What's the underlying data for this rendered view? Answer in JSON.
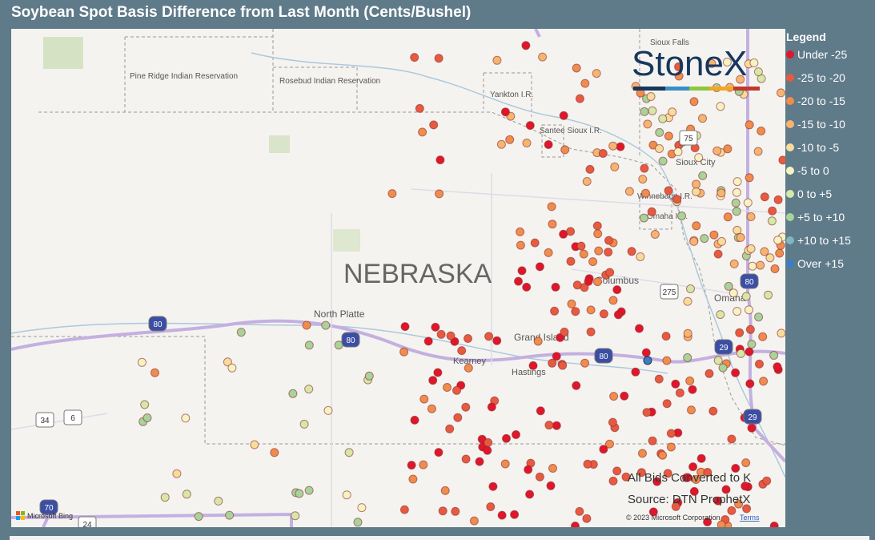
{
  "header": {
    "title": "Soybean Spot Basis Difference from Last Month (Cents/Bushel)"
  },
  "legend": {
    "title": "Legend",
    "items": [
      {
        "label": "Under -25",
        "color": "#e0162b"
      },
      {
        "label": "-25 to -20",
        "color": "#e85a40"
      },
      {
        "label": "-20 to -15",
        "color": "#f08c4c"
      },
      {
        "label": "-15 to -10",
        "color": "#f5b571"
      },
      {
        "label": "-10 to -5",
        "color": "#f8dc9c"
      },
      {
        "label": "-5 to 0",
        "color": "#f6f3c2"
      },
      {
        "label": "0 to +5",
        "color": "#d4e8a8"
      },
      {
        "label": "+5 to +10",
        "color": "#a6d49a"
      },
      {
        "label": "+10 to +15",
        "color": "#7bb8c0"
      },
      {
        "label": "Over +15",
        "color": "#3a7fc4"
      }
    ]
  },
  "map": {
    "state": "NEBRASKA",
    "places": [
      "Pine Ridge Indian Reservation",
      "Rosebud Indian Reservation",
      "Yankton I.R.",
      "Santee Sioux I.R.",
      "Sioux Falls",
      "Sioux City",
      "Winnebago I.R.",
      "Omaha I.R.",
      "North Platte",
      "Grand Island",
      "Kearney",
      "Hastings",
      "Columbus",
      "Omaha"
    ],
    "highways": [
      "80",
      "80",
      "80",
      "80",
      "29",
      "29",
      "34",
      "6",
      "70",
      "24",
      "275",
      "75"
    ]
  },
  "logo": "StoneX",
  "notes": [
    "All Bids Converted to K",
    "Source: DTN ProphetX"
  ],
  "attribution": {
    "bing": "Microsoft Bing",
    "copyright": "© 2023 Microsoft Corporation",
    "terms": "Terms"
  }
}
